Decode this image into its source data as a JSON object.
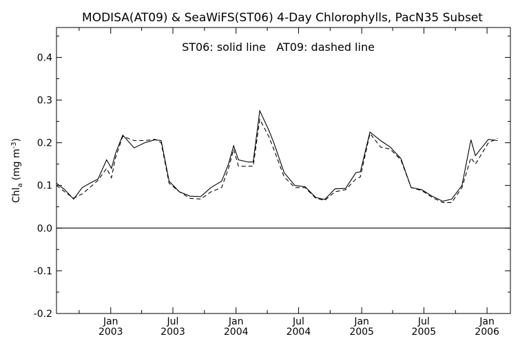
{
  "chart_data": {
    "type": "line",
    "title": "MODISA(AT09) & SeaWiFS(ST06) 4-Day Chlorophylls, PacN35 Subset",
    "annotation": "ST06: solid line   AT09: dashed line",
    "ylabel_main": "Chl",
    "ylabel_sub": "a",
    "ylabel_unit_open": "(mg m",
    "ylabel_unit_sup": "-3",
    "ylabel_unit_close": ")",
    "ylim": [
      -0.2,
      0.47
    ],
    "yticks": [
      "0.4",
      "0.3",
      "0.2",
      "0.1",
      "0.0",
      "-0.1",
      "-0.2"
    ],
    "ytick_values": [
      0.4,
      0.3,
      0.2,
      0.1,
      0.0,
      -0.1,
      -0.2
    ],
    "xlim": [
      "2002-07-27",
      "2006-03-10"
    ],
    "xticks": [
      {
        "date": "2003-01-01",
        "month": "Jan",
        "year": "2003"
      },
      {
        "date": "2003-07-01",
        "month": "Jul",
        "year": "2003"
      },
      {
        "date": "2004-01-01",
        "month": "Jan",
        "year": "2004"
      },
      {
        "date": "2004-07-01",
        "month": "Jul",
        "year": "2004"
      },
      {
        "date": "2005-01-01",
        "month": "Jan",
        "year": "2005"
      },
      {
        "date": "2005-07-01",
        "month": "Jul",
        "year": "2005"
      },
      {
        "date": "2006-01-01",
        "month": "Jan",
        "year": "2006"
      }
    ],
    "minor_ticks": [
      "2002-10-01",
      "2003-04-01",
      "2003-10-01",
      "2004-04-01",
      "2004-10-01",
      "2005-04-01",
      "2005-10-01"
    ],
    "zero_line": 0.0,
    "series": [
      {
        "name": "ST06",
        "style": "solid",
        "color": "#000000",
        "points": [
          [
            "2002-07-27",
            0.105
          ],
          [
            "2002-08-20",
            0.09
          ],
          [
            "2002-09-15",
            0.068
          ],
          [
            "2002-10-10",
            0.095
          ],
          [
            "2002-11-01",
            0.105
          ],
          [
            "2002-11-25",
            0.115
          ],
          [
            "2002-12-20",
            0.16
          ],
          [
            "2003-01-03",
            0.14
          ],
          [
            "2003-01-15",
            0.175
          ],
          [
            "2003-02-05",
            0.218
          ],
          [
            "2003-03-10",
            0.188
          ],
          [
            "2003-04-10",
            0.2
          ],
          [
            "2003-05-10",
            0.207
          ],
          [
            "2003-05-28",
            0.205
          ],
          [
            "2003-06-20",
            0.11
          ],
          [
            "2003-07-20",
            0.085
          ],
          [
            "2003-08-20",
            0.075
          ],
          [
            "2003-09-20",
            0.074
          ],
          [
            "2003-10-20",
            0.095
          ],
          [
            "2003-11-20",
            0.11
          ],
          [
            "2003-12-10",
            0.15
          ],
          [
            "2003-12-25",
            0.193
          ],
          [
            "2004-01-08",
            0.16
          ],
          [
            "2004-02-05",
            0.155
          ],
          [
            "2004-02-20",
            0.155
          ],
          [
            "2004-03-10",
            0.275
          ],
          [
            "2004-04-05",
            0.23
          ],
          [
            "2004-04-20",
            0.2
          ],
          [
            "2004-05-20",
            0.13
          ],
          [
            "2004-06-20",
            0.1
          ],
          [
            "2004-07-20",
            0.097
          ],
          [
            "2004-08-20",
            0.072
          ],
          [
            "2004-09-15",
            0.067
          ],
          [
            "2004-10-15",
            0.092
          ],
          [
            "2004-11-15",
            0.093
          ],
          [
            "2004-12-15",
            0.13
          ],
          [
            "2004-12-28",
            0.132
          ],
          [
            "2005-01-25",
            0.225
          ],
          [
            "2005-02-25",
            0.205
          ],
          [
            "2005-03-25",
            0.19
          ],
          [
            "2005-04-25",
            0.163
          ],
          [
            "2005-05-25",
            0.095
          ],
          [
            "2005-06-25",
            0.09
          ],
          [
            "2005-07-25",
            0.075
          ],
          [
            "2005-08-25",
            0.063
          ],
          [
            "2005-09-20",
            0.068
          ],
          [
            "2005-10-20",
            0.1
          ],
          [
            "2005-11-15",
            0.207
          ],
          [
            "2005-11-28",
            0.17
          ],
          [
            "2006-01-05",
            0.208
          ],
          [
            "2006-02-01",
            0.205
          ]
        ]
      },
      {
        "name": "AT09",
        "style": "dashed",
        "color": "#000000",
        "points": [
          [
            "2002-07-27",
            0.1
          ],
          [
            "2002-08-20",
            0.085
          ],
          [
            "2002-09-15",
            0.07
          ],
          [
            "2002-10-10",
            0.08
          ],
          [
            "2002-11-01",
            0.095
          ],
          [
            "2002-11-25",
            0.112
          ],
          [
            "2002-12-20",
            0.14
          ],
          [
            "2003-01-03",
            0.118
          ],
          [
            "2003-01-15",
            0.165
          ],
          [
            "2003-02-05",
            0.215
          ],
          [
            "2003-03-10",
            0.205
          ],
          [
            "2003-04-10",
            0.205
          ],
          [
            "2003-05-10",
            0.208
          ],
          [
            "2003-05-28",
            0.2
          ],
          [
            "2003-06-20",
            0.105
          ],
          [
            "2003-07-20",
            0.085
          ],
          [
            "2003-08-20",
            0.07
          ],
          [
            "2003-09-20",
            0.068
          ],
          [
            "2003-10-20",
            0.085
          ],
          [
            "2003-11-20",
            0.095
          ],
          [
            "2003-12-10",
            0.14
          ],
          [
            "2003-12-25",
            0.185
          ],
          [
            "2004-01-08",
            0.145
          ],
          [
            "2004-02-05",
            0.145
          ],
          [
            "2004-02-20",
            0.145
          ],
          [
            "2004-03-10",
            0.255
          ],
          [
            "2004-04-05",
            0.215
          ],
          [
            "2004-04-20",
            0.185
          ],
          [
            "2004-05-20",
            0.12
          ],
          [
            "2004-06-20",
            0.095
          ],
          [
            "2004-07-20",
            0.095
          ],
          [
            "2004-08-20",
            0.07
          ],
          [
            "2004-09-15",
            0.065
          ],
          [
            "2004-10-15",
            0.085
          ],
          [
            "2004-11-15",
            0.09
          ],
          [
            "2004-12-15",
            0.115
          ],
          [
            "2004-12-28",
            0.12
          ],
          [
            "2005-01-25",
            0.222
          ],
          [
            "2005-02-25",
            0.19
          ],
          [
            "2005-03-25",
            0.185
          ],
          [
            "2005-04-25",
            0.16
          ],
          [
            "2005-05-25",
            0.095
          ],
          [
            "2005-06-25",
            0.088
          ],
          [
            "2005-07-25",
            0.072
          ],
          [
            "2005-08-25",
            0.06
          ],
          [
            "2005-09-20",
            0.06
          ],
          [
            "2005-10-20",
            0.095
          ],
          [
            "2005-11-15",
            0.165
          ],
          [
            "2005-11-28",
            0.15
          ],
          [
            "2006-01-05",
            0.2
          ],
          [
            "2006-02-01",
            0.21
          ]
        ]
      }
    ]
  }
}
